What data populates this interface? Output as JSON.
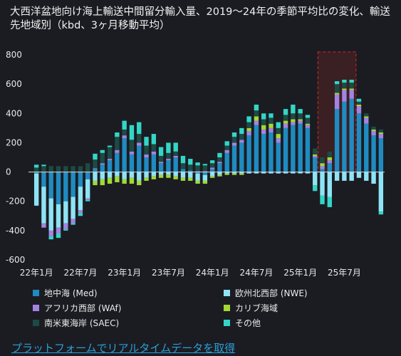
{
  "header": {
    "title": "大西洋盆地向け海上輸送中間留分輸入量、2019～24年の季節平均比の変化、輸送先地域別（kbd、3ヶ月移動平均）"
  },
  "footer": {
    "cta_link": "プラットフォームでリアルタイムデータを取得"
  },
  "chart_data": {
    "type": "bar",
    "stacked": true,
    "grid": false,
    "legend_position": "bottom",
    "ylim": [
      -600,
      800
    ],
    "yticks": [
      -600,
      -400,
      -200,
      0,
      200,
      400,
      600,
      800
    ],
    "xtick_labels": [
      {
        "index": 0,
        "label": "22年1月"
      },
      {
        "index": 6,
        "label": "22年7月"
      },
      {
        "index": 12,
        "label": "23年1月"
      },
      {
        "index": 18,
        "label": "23年7月"
      },
      {
        "index": 24,
        "label": "24年1月"
      },
      {
        "index": 30,
        "label": "24年7月"
      },
      {
        "index": 36,
        "label": "25年1月"
      },
      {
        "index": 42,
        "label": "25年7月"
      }
    ],
    "highlight": {
      "from_index": 39,
      "to_index": 43,
      "ymax": 820
    },
    "series": [
      {
        "name": "地中海 (Med)",
        "color": "#1f8bc0",
        "values": [
          -10,
          -100,
          -180,
          -220,
          -200,
          -170,
          -100,
          -50,
          20,
          50,
          80,
          130,
          230,
          120,
          180,
          100,
          120,
          60,
          80,
          100,
          20,
          10,
          -10,
          -20,
          20,
          60,
          130,
          180,
          200,
          250,
          320,
          260,
          270,
          200,
          300,
          320,
          330,
          300,
          100,
          20,
          60,
          430,
          480,
          500,
          400,
          330,
          250,
          230
        ]
      },
      {
        "name": "欧州北西部 (NWE)",
        "color": "#8ee3f5",
        "values": [
          -220,
          -250,
          -220,
          -160,
          -150,
          -150,
          -160,
          -130,
          -60,
          -50,
          -40,
          -30,
          -50,
          -40,
          -60,
          -40,
          -30,
          -20,
          -20,
          -30,
          -40,
          -40,
          -50,
          -40,
          -30,
          -20,
          -10,
          -10,
          -10,
          -10,
          -10,
          -10,
          -10,
          -10,
          -10,
          -10,
          -10,
          -10,
          -90,
          -160,
          -170,
          -60,
          -60,
          -60,
          -40,
          -60,
          -80,
          -270
        ]
      },
      {
        "name": "アフリカ西部 (WAf)",
        "color": "#a483e3",
        "values": [
          0,
          -30,
          -40,
          -40,
          -40,
          -30,
          -20,
          -10,
          5,
          10,
          10,
          20,
          20,
          20,
          20,
          20,
          20,
          10,
          10,
          10,
          0,
          0,
          5,
          5,
          10,
          10,
          20,
          20,
          20,
          30,
          30,
          30,
          30,
          30,
          30,
          20,
          20,
          20,
          10,
          20,
          20,
          100,
          80,
          60,
          50,
          40,
          30,
          30
        ]
      },
      {
        "name": "カリブ海域",
        "color": "#a3d835",
        "values": [
          0,
          0,
          0,
          0,
          0,
          0,
          0,
          0,
          -30,
          -40,
          -40,
          -40,
          -30,
          -40,
          -30,
          -20,
          -20,
          -20,
          -20,
          -20,
          -20,
          -20,
          -20,
          -20,
          -10,
          -10,
          -10,
          -10,
          -10,
          20,
          30,
          30,
          30,
          30,
          20,
          20,
          10,
          10,
          10,
          20,
          20,
          10,
          10,
          10,
          10,
          10,
          10,
          10
        ]
      },
      {
        "name": "南米東海岸 (SAEC)",
        "color": "#1d4a44",
        "values": [
          30,
          40,
          40,
          40,
          40,
          40,
          40,
          60,
          60,
          70,
          80,
          90,
          40,
          80,
          60,
          60,
          50,
          40,
          40,
          30,
          40,
          40,
          40,
          40,
          30,
          30,
          30,
          40,
          40,
          40,
          40,
          40,
          40,
          40,
          40,
          40,
          40,
          40,
          40,
          40,
          40,
          60,
          40,
          40,
          20,
          20,
          20,
          20
        ]
      },
      {
        "name": "その他",
        "color": "#33d6c6",
        "values": [
          20,
          10,
          -20,
          -30,
          -10,
          -10,
          -20,
          -10,
          40,
          20,
          10,
          30,
          60,
          100,
          80,
          60,
          70,
          60,
          70,
          60,
          50,
          40,
          20,
          10,
          20,
          30,
          30,
          30,
          40,
          40,
          40,
          40,
          30,
          40,
          40,
          60,
          30,
          20,
          -40,
          -60,
          -70,
          20,
          20,
          20,
          20,
          0,
          0,
          -20
        ]
      }
    ]
  }
}
